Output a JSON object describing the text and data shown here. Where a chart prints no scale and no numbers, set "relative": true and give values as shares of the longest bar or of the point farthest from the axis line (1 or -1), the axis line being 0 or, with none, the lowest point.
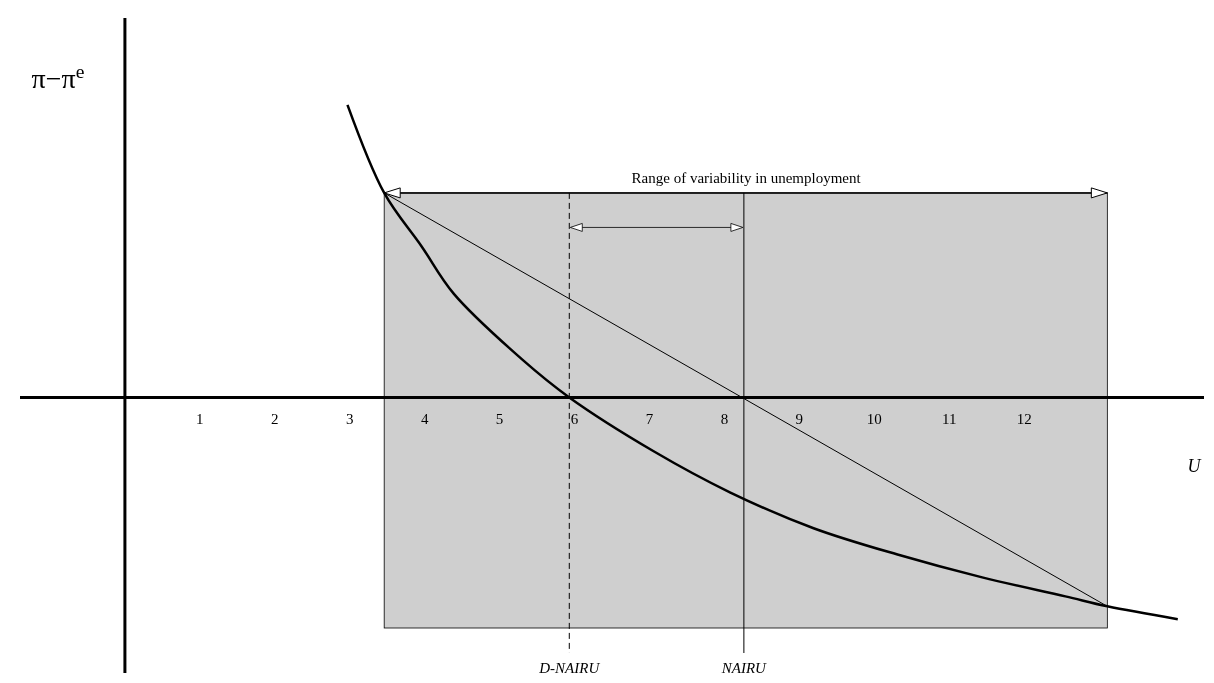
{
  "chart_data": {
    "type": "line",
    "relative": true,
    "ylabel": "π−π$^{e}$",
    "xlabel": "U",
    "xlim": [
      -1.4,
      14.4
    ],
    "xticks": [
      1,
      2,
      3,
      4,
      5,
      6,
      7,
      8,
      9,
      10,
      11,
      12
    ],
    "series": [
      {
        "color": "#000000",
        "x": [
          2.97,
          3.46,
          3.96,
          4.39,
          5.3,
          5.93,
          7.05,
          8.08,
          9.19,
          10.31,
          11.44,
          12.55,
          13.11,
          14.05
        ],
        "values": [
          1,
          0.699,
          0.516,
          0.354,
          0.13,
          0,
          -0.183,
          -0.325,
          -0.447,
          -0.537,
          -0.615,
          -0.68,
          -0.714,
          -0.758
        ]
      },
      {
        "color": "#000000",
        "x": [
          3.46,
          13.11
        ],
        "values": [
          0.699,
          -0.714
        ]
      }
    ],
    "bands": [
      {
        "axis": "x",
        "from": 3.46,
        "to": 13.11,
        "color": "#cfcfcf"
      }
    ],
    "ref_lines": [
      {
        "axis": "x",
        "value": 5.93,
        "label": "D-NAIRU",
        "line_style": "dashed"
      },
      {
        "axis": "x",
        "value": 8.26,
        "label": "NAIRU"
      }
    ],
    "annotations": [
      {
        "text": "Range of variability in unemployment",
        "x": 8.29,
        "y": 0.699
      }
    ],
    "marker": "none"
  }
}
